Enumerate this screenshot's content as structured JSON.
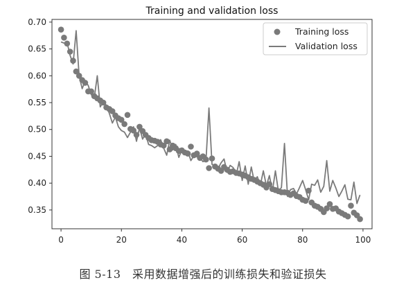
{
  "caption": "图 5-13　采用数据增强后的训练损失和验证损失",
  "chart_data": {
    "type": "line",
    "title": "Training and validation loss",
    "xlabel": "",
    "ylabel": "",
    "xlim": [
      -3,
      103
    ],
    "ylim": [
      0.315,
      0.705
    ],
    "xticks": [
      0,
      20,
      40,
      60,
      80,
      100
    ],
    "yticks": [
      0.35,
      0.4,
      0.45,
      0.5,
      0.55,
      0.6,
      0.65,
      0.7
    ],
    "grid": false,
    "legend_position": "top-right",
    "colors": {
      "series": "#7a7a7a",
      "axes": "#333333"
    },
    "series": [
      {
        "name": "Training loss",
        "style": "markers",
        "x": [
          0,
          1,
          2,
          3,
          4,
          5,
          6,
          7,
          8,
          9,
          10,
          11,
          12,
          13,
          14,
          15,
          16,
          17,
          18,
          19,
          20,
          21,
          22,
          23,
          24,
          25,
          26,
          27,
          28,
          29,
          30,
          31,
          32,
          33,
          34,
          35,
          36,
          37,
          38,
          39,
          40,
          41,
          42,
          43,
          44,
          45,
          46,
          47,
          48,
          49,
          50,
          51,
          52,
          53,
          54,
          55,
          56,
          57,
          58,
          59,
          60,
          61,
          62,
          63,
          64,
          65,
          66,
          67,
          68,
          69,
          70,
          71,
          72,
          73,
          74,
          75,
          76,
          77,
          78,
          79,
          80,
          81,
          82,
          83,
          84,
          85,
          86,
          87,
          88,
          89,
          90,
          91,
          92,
          93,
          94,
          95,
          96,
          97,
          98,
          99
        ],
        "y": [
          0.686,
          0.671,
          0.66,
          0.645,
          0.628,
          0.608,
          0.6,
          0.592,
          0.587,
          0.571,
          0.571,
          0.562,
          0.558,
          0.554,
          0.55,
          0.541,
          0.538,
          0.534,
          0.526,
          0.521,
          0.518,
          0.51,
          0.527,
          0.501,
          0.498,
          0.49,
          0.505,
          0.497,
          0.49,
          0.484,
          0.48,
          0.479,
          0.477,
          0.472,
          0.47,
          0.478,
          0.463,
          0.47,
          0.465,
          0.46,
          0.461,
          0.457,
          0.455,
          0.468,
          0.452,
          0.455,
          0.447,
          0.45,
          0.444,
          0.428,
          0.446,
          0.431,
          0.427,
          0.423,
          0.43,
          0.425,
          0.421,
          0.422,
          0.419,
          0.418,
          0.416,
          0.414,
          0.411,
          0.408,
          0.406,
          0.403,
          0.4,
          0.397,
          0.392,
          0.398,
          0.389,
          0.387,
          0.385,
          0.383,
          0.383,
          0.382,
          0.378,
          0.381,
          0.376,
          0.374,
          0.369,
          0.367,
          0.386,
          0.364,
          0.358,
          0.356,
          0.352,
          0.346,
          0.353,
          0.361,
          0.352,
          0.353,
          0.347,
          0.344,
          0.341,
          0.338,
          0.358,
          0.345,
          0.34,
          0.333
        ]
      },
      {
        "name": "Validation loss",
        "style": "line",
        "x": [
          0,
          1,
          2,
          3,
          4,
          5,
          6,
          7,
          8,
          9,
          10,
          11,
          12,
          13,
          14,
          15,
          16,
          17,
          18,
          19,
          20,
          21,
          22,
          23,
          24,
          25,
          26,
          27,
          28,
          29,
          30,
          31,
          32,
          33,
          34,
          35,
          36,
          37,
          38,
          39,
          40,
          41,
          42,
          43,
          44,
          45,
          46,
          47,
          48,
          49,
          50,
          51,
          52,
          53,
          54,
          55,
          56,
          57,
          58,
          59,
          60,
          61,
          62,
          63,
          64,
          65,
          66,
          67,
          68,
          69,
          70,
          71,
          72,
          73,
          74,
          75,
          76,
          77,
          78,
          79,
          80,
          81,
          82,
          83,
          84,
          85,
          86,
          87,
          88,
          89,
          90,
          91,
          92,
          93,
          94,
          95,
          96,
          97,
          98,
          99
        ],
        "y": [
          0.663,
          0.661,
          0.662,
          0.638,
          0.622,
          0.684,
          0.6,
          0.576,
          0.59,
          0.582,
          0.565,
          0.558,
          0.6,
          0.542,
          0.552,
          0.545,
          0.53,
          0.512,
          0.523,
          0.505,
          0.498,
          0.495,
          0.485,
          0.495,
          0.505,
          0.478,
          0.503,
          0.482,
          0.492,
          0.472,
          0.47,
          0.466,
          0.47,
          0.481,
          0.465,
          0.452,
          0.48,
          0.462,
          0.472,
          0.448,
          0.462,
          0.454,
          0.46,
          0.442,
          0.451,
          0.449,
          0.448,
          0.44,
          0.442,
          0.54,
          0.435,
          0.432,
          0.427,
          0.438,
          0.445,
          0.42,
          0.433,
          0.429,
          0.415,
          0.44,
          0.405,
          0.432,
          0.398,
          0.43,
          0.403,
          0.412,
          0.396,
          0.423,
          0.395,
          0.414,
          0.385,
          0.423,
          0.384,
          0.392,
          0.474,
          0.375,
          0.388,
          0.39,
          0.38,
          0.392,
          0.405,
          0.388,
          0.369,
          0.398,
          0.396,
          0.406,
          0.383,
          0.394,
          0.442,
          0.385,
          0.405,
          0.391,
          0.375,
          0.385,
          0.397,
          0.37,
          0.369,
          0.402,
          0.362,
          0.378
        ]
      }
    ]
  }
}
